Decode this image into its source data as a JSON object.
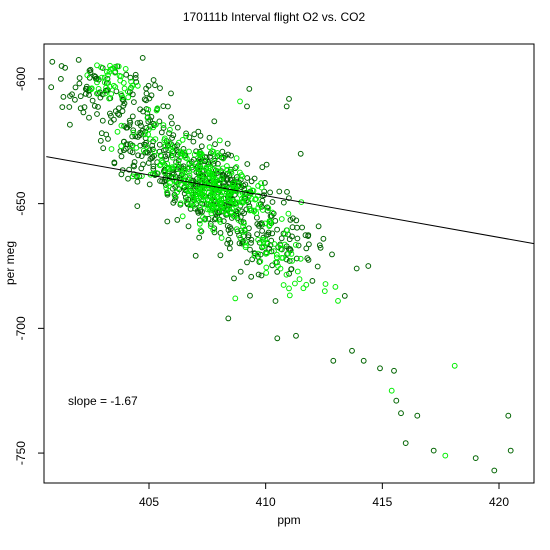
{
  "chart_data": {
    "type": "scatter",
    "title": "170111b   Interval flight O2 vs. CO2",
    "xlabel": "ppm",
    "ylabel": "per meg",
    "xlim": [
      400.5,
      421.5
    ],
    "ylim": [
      -762,
      -586
    ],
    "x_ticks": [
      405,
      410,
      415,
      420
    ],
    "x_tick_labels": [
      "405",
      "410",
      "415",
      "420"
    ],
    "y_ticks": [
      -750,
      -700,
      -650,
      -600
    ],
    "y_tick_labels": [
      "-750",
      "-700",
      "-650",
      "-600"
    ],
    "annotation": "slope =  -1.67",
    "slope": -1.67,
    "grid": false,
    "series": [
      {
        "color": "#006400",
        "clusters": [
          {
            "cx": 402.5,
            "cy": -605,
            "sx": 1.1,
            "sy": 5,
            "n": 70,
            "r": 0
          },
          {
            "cx": 404.2,
            "cy": -618,
            "sx": 1.0,
            "sy": 8,
            "n": 60,
            "r": 0
          },
          {
            "cx": 407.8,
            "cy": -645,
            "sx": 1.6,
            "sy": 12,
            "n": 360,
            "r": -0.65
          },
          {
            "cx": 410.5,
            "cy": -668,
            "sx": 1.3,
            "sy": 9,
            "n": 60,
            "r": -0.4
          },
          {
            "cx": 406.2,
            "cy": -635,
            "sx": 1.3,
            "sy": 10,
            "n": 80,
            "r": -0.5
          }
        ],
        "points": [
          [
            408.4,
            -696
          ],
          [
            410.5,
            -704
          ],
          [
            411.3,
            -703
          ],
          [
            412.9,
            -713
          ],
          [
            413.7,
            -709
          ],
          [
            414.2,
            -713
          ],
          [
            414.9,
            -716
          ],
          [
            415.5,
            -717
          ],
          [
            415.6,
            -729
          ],
          [
            415.8,
            -734
          ],
          [
            416.0,
            -746
          ],
          [
            416.5,
            -735
          ],
          [
            417.2,
            -749
          ],
          [
            419.0,
            -752
          ],
          [
            419.8,
            -757
          ],
          [
            420.4,
            -735
          ],
          [
            420.5,
            -749
          ],
          [
            414.4,
            -675
          ],
          [
            413.9,
            -676
          ],
          [
            411.5,
            -630
          ],
          [
            411.0,
            -608
          ],
          [
            410.9,
            -611
          ],
          [
            409.2,
            -611
          ],
          [
            409.3,
            -604
          ],
          [
            407.8,
            -617
          ],
          [
            404.1,
            -640
          ],
          [
            404.5,
            -651
          ]
        ]
      },
      {
        "color": "#00ee00",
        "clusters": [
          {
            "cx": 403.4,
            "cy": -602,
            "sx": 0.6,
            "sy": 4,
            "n": 40,
            "r": 0
          },
          {
            "cx": 407.9,
            "cy": -645,
            "sx": 1.2,
            "sy": 9,
            "n": 300,
            "r": -0.55
          },
          {
            "cx": 410.6,
            "cy": -670,
            "sx": 1.1,
            "sy": 7,
            "n": 40,
            "r": -0.4
          },
          {
            "cx": 405.3,
            "cy": -628,
            "sx": 1.0,
            "sy": 8,
            "n": 40,
            "r": -0.4
          }
        ],
        "points": [
          [
            403.7,
            -595
          ],
          [
            404.0,
            -596
          ],
          [
            408.9,
            -609
          ],
          [
            408.7,
            -688
          ],
          [
            413.1,
            -689
          ],
          [
            411.0,
            -684
          ],
          [
            415.4,
            -725
          ],
          [
            418.1,
            -715
          ],
          [
            417.7,
            -751
          ]
        ]
      }
    ]
  }
}
